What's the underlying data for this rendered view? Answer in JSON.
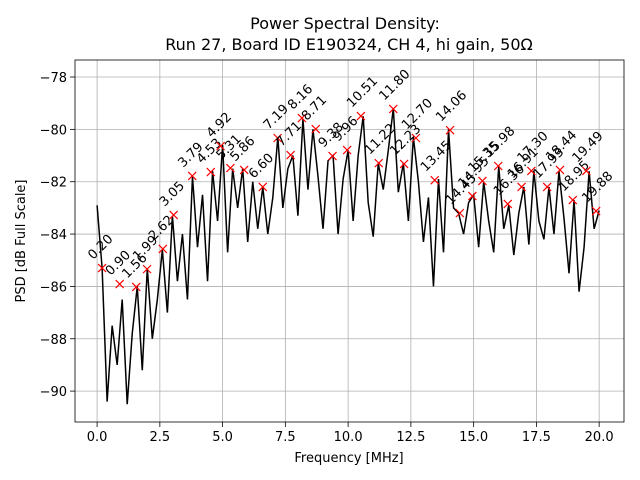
{
  "chart_data": {
    "type": "line",
    "title": "Power Spectral Density:",
    "subtitle": "Run 27, Board ID E190324, CH 4, hi gain, 50Ω",
    "xlabel": "Frequency [MHz]",
    "ylabel": "PSD [dB Full Scale]",
    "xlim": [
      -0.88,
      20.99
    ],
    "ylim": [
      -91.18,
      -77.35
    ],
    "xticks": [
      {
        "value": 0,
        "label": "0.0"
      },
      2.5,
      {
        "value": 5,
        "label": "5.0"
      },
      7.5,
      {
        "value": 10,
        "label": "10.0"
      },
      12.5,
      {
        "value": 15,
        "label": "15.0"
      },
      17.5,
      {
        "value": 20,
        "label": "20.0"
      }
    ],
    "yticks": [
      {
        "value": -90,
        "label": "−90"
      },
      {
        "value": -88,
        "label": "−88"
      },
      {
        "value": -86,
        "label": "−86"
      },
      {
        "value": -84,
        "label": "−84"
      },
      {
        "value": -82,
        "label": "−82"
      },
      {
        "value": -80,
        "label": "−80"
      },
      {
        "value": -78,
        "label": "−78"
      }
    ],
    "grid": true,
    "series": [
      {
        "color": "#000000",
        "x": [
          0,
          0.2,
          0.4,
          0.6,
          0.8,
          1,
          1.2,
          1.4,
          1.6,
          1.8,
          2,
          2.2,
          2.4,
          2.6,
          2.8,
          3,
          3.2,
          3.4,
          3.6,
          3.8,
          4,
          4.2,
          4.4,
          4.6,
          4.8,
          5,
          5.2,
          5.4,
          5.6,
          5.8,
          6,
          6.2,
          6.4,
          6.6,
          6.8,
          7,
          7.2,
          7.4,
          7.6,
          7.8,
          8,
          8.2,
          8.4,
          8.6,
          8.8,
          9,
          9.2,
          9.4,
          9.6,
          9.8,
          10,
          10.2,
          10.4,
          10.6,
          10.8,
          11,
          11.2,
          11.4,
          11.6,
          11.8,
          12,
          12.2,
          12.4,
          12.6,
          12.8,
          13,
          13.2,
          13.4,
          13.6,
          13.8,
          14,
          14.2,
          14.4,
          14.6,
          14.8,
          15,
          15.2,
          15.4,
          15.6,
          15.8,
          16,
          16.2,
          16.4,
          16.6,
          16.8,
          17,
          17.2,
          17.4,
          17.6,
          17.8,
          18,
          18.2,
          18.4,
          18.6,
          18.8,
          19,
          19.2,
          19.4,
          19.6,
          19.8,
          20
        ],
        "values": [
          -82.9,
          -85.3,
          -90.4,
          -87.5,
          -89.0,
          -86.5,
          -90.5,
          -87.8,
          -86.0,
          -89.2,
          -85.3,
          -88.0,
          -86.5,
          -84.6,
          -87.0,
          -83.3,
          -85.8,
          -84.0,
          -86.5,
          -81.8,
          -84.5,
          -82.5,
          -85.8,
          -81.6,
          -83.5,
          -80.6,
          -84.7,
          -81.5,
          -83.0,
          -81.5,
          -84.3,
          -82.0,
          -83.8,
          -82.2,
          -84.0,
          -82.6,
          -80.3,
          -83.0,
          -81.5,
          -81.0,
          -83.3,
          -79.6,
          -82.3,
          -80.0,
          -81.8,
          -83.8,
          -81.2,
          -81.0,
          -84.0,
          -81.9,
          -80.8,
          -83.5,
          -81.0,
          -79.5,
          -82.8,
          -84.1,
          -81.3,
          -82.3,
          -80.8,
          -79.2,
          -82.4,
          -81.3,
          -83.5,
          -80.3,
          -82.0,
          -84.3,
          -82.6,
          -86.0,
          -81.9,
          -84.7,
          -80.0,
          -83.0,
          -83.2,
          -84.0,
          -82.8,
          -82.5,
          -84.5,
          -82.0,
          -83.5,
          -84.7,
          -81.4,
          -83.8,
          -82.9,
          -84.8,
          -83.2,
          -82.2,
          -84.4,
          -81.6,
          -83.5,
          -84.2,
          -82.2,
          -84.0,
          -81.6,
          -83.4,
          -85.5,
          -82.7,
          -86.2,
          -84.5,
          -81.6,
          -83.8,
          -83.1
        ]
      },
      {
        "color": "#ff0000",
        "marker": "x",
        "x": [
          0.2,
          0.9,
          1.56,
          1.99,
          2.62,
          3.05,
          3.79,
          4.53,
          4.92,
          5.31,
          5.86,
          6.6,
          7.19,
          7.71,
          8.16,
          8.71,
          9.38,
          9.96,
          10.51,
          11.22,
          11.8,
          12.23,
          12.7,
          13.45,
          14.06,
          14.45,
          14.95,
          15.35,
          15.98,
          16.36,
          16.91,
          17.3,
          17.93,
          18.44,
          18.95,
          19.49,
          19.88
        ],
        "values": [
          -85.3,
          -85.91,
          -86.02,
          -85.34,
          -84.57,
          -83.27,
          -81.78,
          -81.63,
          -80.64,
          -81.48,
          -81.55,
          -82.2,
          -80.33,
          -80.98,
          -79.57,
          -79.99,
          -81.02,
          -80.79,
          -79.49,
          -81.29,
          -79.22,
          -81.32,
          -80.33,
          -81.94,
          -80.03,
          -83.2,
          -82.55,
          -81.97,
          -81.4,
          -82.85,
          -82.2,
          -81.59,
          -82.2,
          -81.55,
          -82.7,
          -81.59,
          -83.12
        ],
        "labels": [
          "0.20",
          "0.90",
          "1.56",
          "1.99",
          "2.62",
          "3.05",
          "3.79",
          "4.53",
          "4.92",
          "5.31",
          "5.86",
          "6.60",
          "7.19",
          "7.71",
          "8.16",
          "8.71",
          "9.38",
          "9.96",
          "10.51",
          "11.22",
          "11.80",
          "12.23",
          "12.70",
          "13.45",
          "14.06",
          "14.45",
          "14.95",
          "15.35",
          "15.98",
          "16.36",
          "16.91",
          "17.30",
          "17.93",
          "18.44",
          "18.95",
          "19.49",
          "19.88"
        ]
      }
    ]
  }
}
